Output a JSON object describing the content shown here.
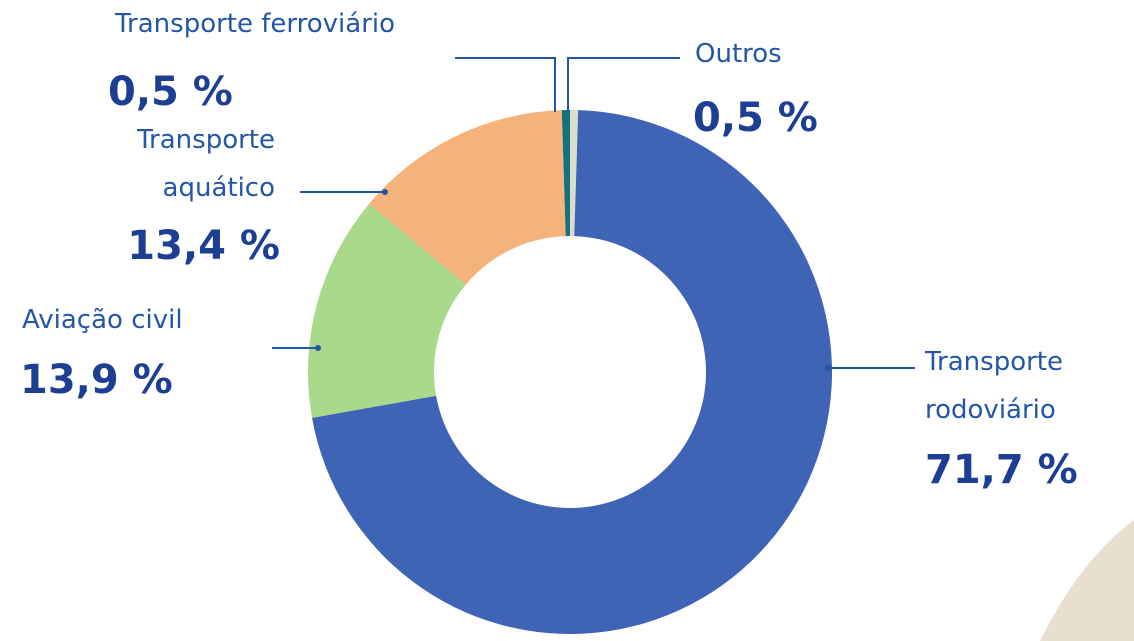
{
  "chart_data": {
    "type": "donut",
    "categories": [
      "Outros",
      "Transporte rodoviário",
      "Aviação civil",
      "Transporte aquático",
      "Transporte ferroviário"
    ],
    "values": [
      0.5,
      71.7,
      13.9,
      13.4,
      0.5
    ],
    "value_labels": [
      "0,5 %",
      "71,7 %",
      "13,9 %",
      "13,4 %",
      "0,5 %"
    ],
    "colors": [
      "#d9ddc9",
      "#3f63b5",
      "#a9d98b",
      "#f5b27a",
      "#17707e"
    ]
  }
}
